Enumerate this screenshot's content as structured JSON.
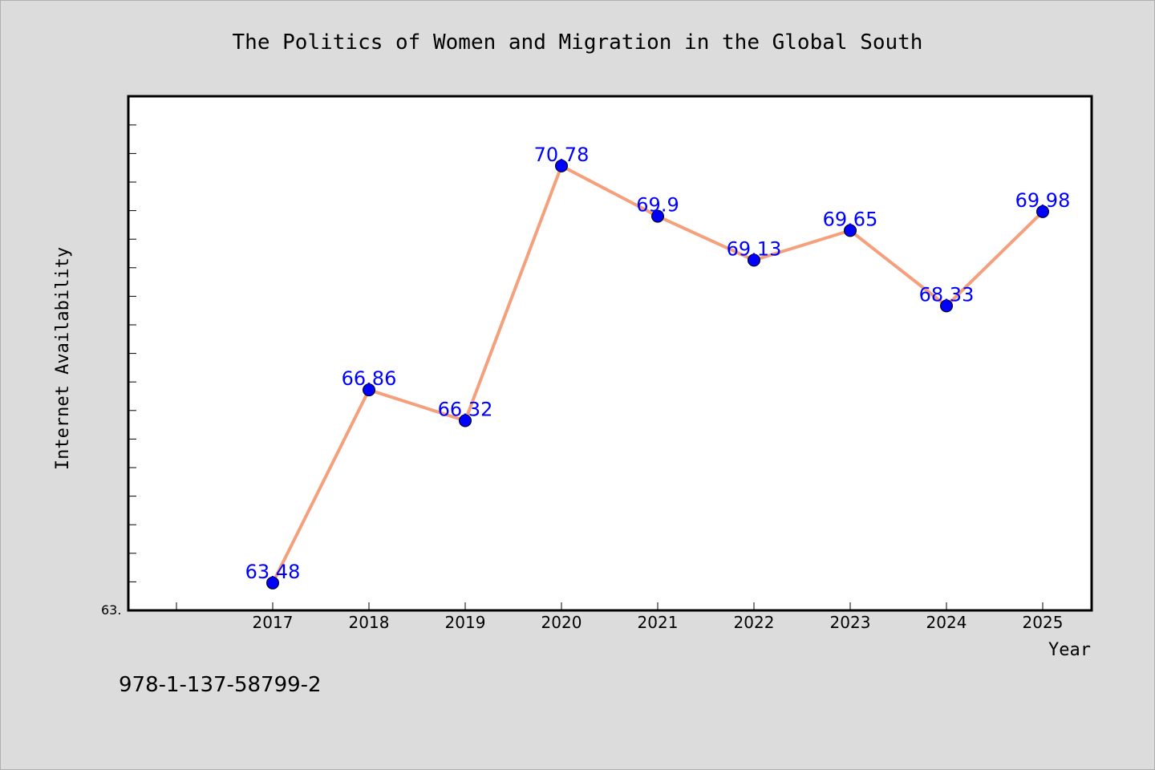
{
  "chart_data": {
    "type": "line",
    "title": "The Politics of Women and Migration in the Global South",
    "xlabel": "Year",
    "ylabel": "Internet Availability",
    "x": [
      "2017",
      "2018",
      "2019",
      "2020",
      "2021",
      "2022",
      "2023",
      "2024",
      "2025"
    ],
    "series": [
      {
        "values": [
          63.48,
          66.86,
          66.32,
          70.78,
          69.9,
          69.13,
          69.65,
          68.33,
          69.98
        ],
        "labels": [
          "63.48",
          "66.86",
          "66.32",
          "70.78",
          "69.9",
          "69.13",
          "69.65",
          "68.33",
          "69.98"
        ]
      }
    ],
    "y_tick_label": "63.",
    "ylim": [
      63.0,
      72.0
    ],
    "grid": false,
    "colors": {
      "line": "#f4a07c",
      "marker": "#0000ff",
      "label": "#0000ff",
      "plot_bg": "#ffffff",
      "page_bg": "#dcdcdc"
    }
  },
  "footer": {
    "isbn": "978-1-137-58799-2"
  }
}
